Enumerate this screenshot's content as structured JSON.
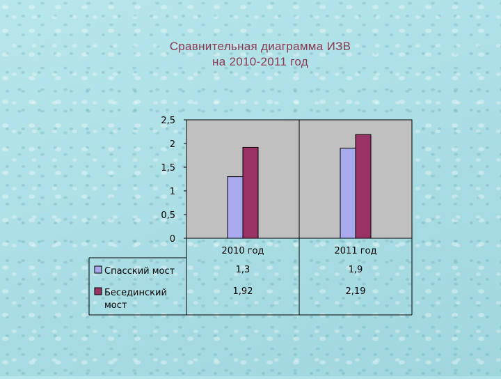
{
  "chart_data": {
    "type": "bar",
    "title_line1": "Сравнительная диаграмма ИЗВ",
    "title_line2": "на 2010-2011 год",
    "categories": [
      "2010 год",
      "2011 год"
    ],
    "series": [
      {
        "name": "Спасский мост",
        "legend_lines": [
          "Спасский мост"
        ],
        "values": [
          1.3,
          1.9
        ],
        "value_labels": [
          "1,3",
          "1,9"
        ],
        "color": "#a9a9ee"
      },
      {
        "name": "Бесединский мост",
        "legend_lines": [
          "Бесединский",
          "мост"
        ],
        "values": [
          1.92,
          2.19
        ],
        "value_labels": [
          "1,92",
          "2,19"
        ],
        "color": "#993366"
      }
    ],
    "y_ticks": [
      "0",
      "0,5",
      "1",
      "1,5",
      "2",
      "2,5"
    ],
    "ylim": [
      0,
      2.5
    ],
    "plot_background": "#c0c0c0",
    "legend_position": "data-table-left"
  }
}
